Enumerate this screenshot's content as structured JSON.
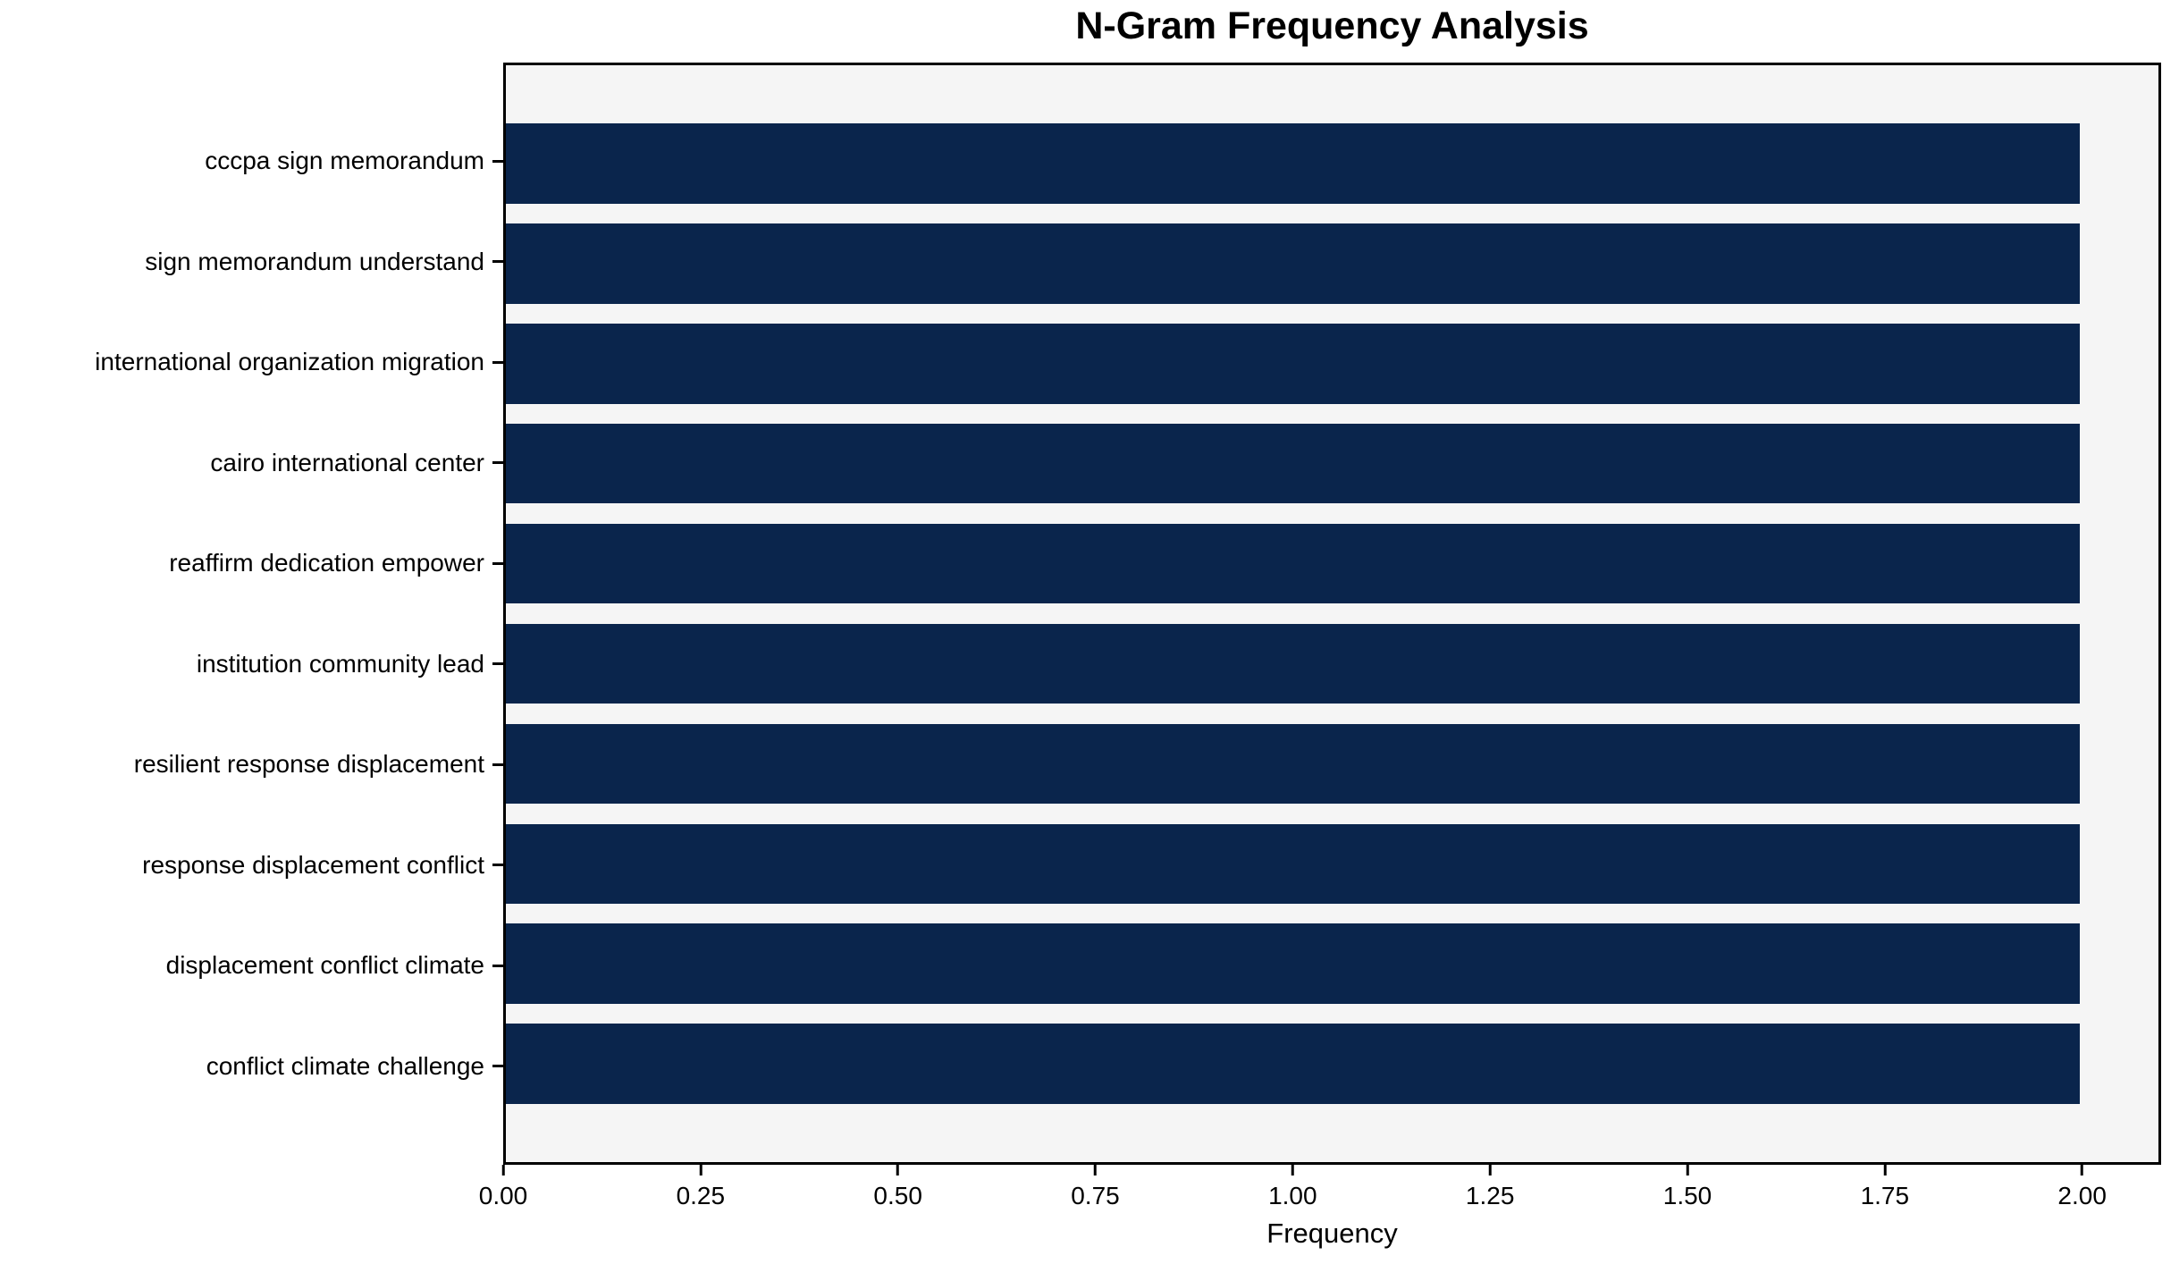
{
  "chart_data": {
    "type": "bar",
    "orientation": "horizontal",
    "title": "N-Gram Frequency Analysis",
    "xlabel": "Frequency",
    "ylabel": "",
    "categories": [
      "cccpa sign memorandum",
      "sign memorandum understand",
      "international organization migration",
      "cairo international center",
      "reaffirm dedication empower",
      "institution community lead",
      "resilient response displacement",
      "response displacement conflict",
      "displacement conflict climate",
      "conflict climate challenge"
    ],
    "values": [
      2,
      2,
      2,
      2,
      2,
      2,
      2,
      2,
      2,
      2
    ],
    "xlim": [
      0,
      2.1
    ],
    "xticks": [
      {
        "value": 0.0,
        "label": "0.00"
      },
      {
        "value": 0.25,
        "label": "0.25"
      },
      {
        "value": 0.5,
        "label": "0.50"
      },
      {
        "value": 0.75,
        "label": "0.75"
      },
      {
        "value": 1.0,
        "label": "1.00"
      },
      {
        "value": 1.25,
        "label": "1.25"
      },
      {
        "value": 1.5,
        "label": "1.50"
      },
      {
        "value": 1.75,
        "label": "1.75"
      },
      {
        "value": 2.0,
        "label": "2.00"
      }
    ],
    "grid": false,
    "legend_position": "none",
    "bar_color": "#0a254c",
    "plot_bg_color": "#f5f5f5",
    "figure_bg_color": "#ffffff",
    "spine_color": "#000000",
    "text_color": "#000000"
  }
}
